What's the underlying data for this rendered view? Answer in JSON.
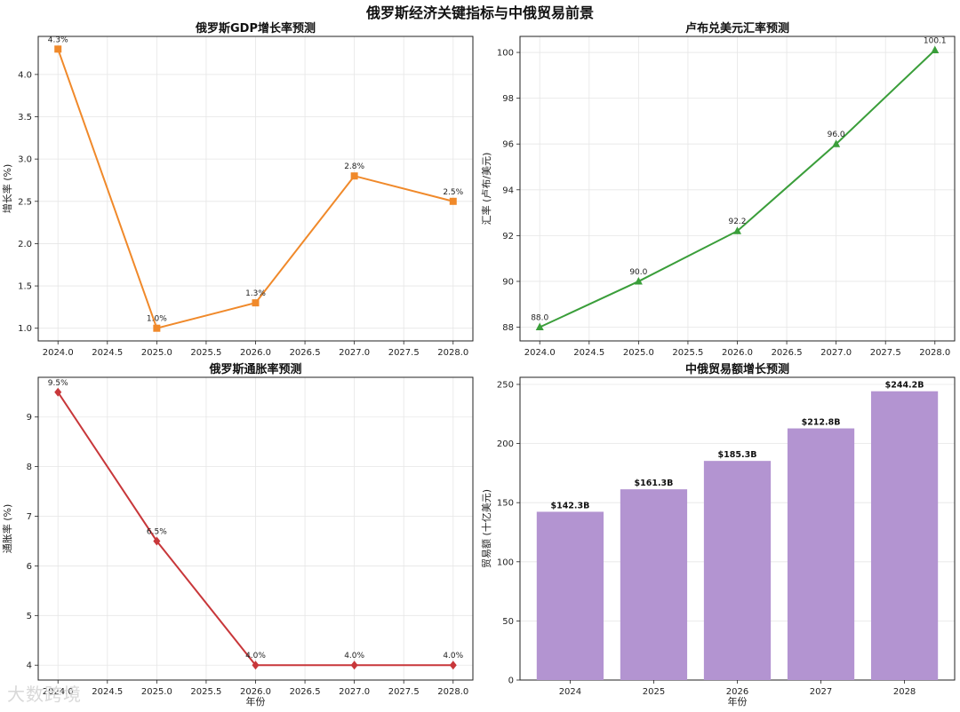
{
  "suptitle": "俄罗斯经济关键指标与中俄贸易前景",
  "watermark": "大数跨境",
  "chart_data": [
    {
      "type": "line",
      "title": "俄罗斯GDP增长率预测",
      "xlabel": "",
      "ylabel": "增长率 (%)",
      "x": [
        2024,
        2025,
        2026,
        2027,
        2028
      ],
      "values": [
        4.3,
        1.0,
        1.3,
        2.8,
        2.5
      ],
      "labels": [
        "4.3%",
        "1.0%",
        "1.3%",
        "2.8%",
        "2.5%"
      ],
      "xlim": [
        2023.8,
        2028.2
      ],
      "ylim": [
        0.85,
        4.45
      ],
      "xticks": [
        2024.0,
        2024.5,
        2025.0,
        2025.5,
        2026.0,
        2026.5,
        2027.0,
        2027.5,
        2028.0
      ],
      "xtick_labels": [
        "2024.0",
        "2024.5",
        "2025.0",
        "2025.5",
        "2026.0",
        "2026.5",
        "2027.0",
        "2027.5",
        "2028.0"
      ],
      "yticks": [
        1.0,
        1.5,
        2.0,
        2.5,
        3.0,
        3.5,
        4.0
      ],
      "ytick_labels": [
        "1.0",
        "1.5",
        "2.0",
        "2.5",
        "3.0",
        "3.5",
        "4.0"
      ],
      "marker": "square",
      "color": "#f0892a",
      "grid": true
    },
    {
      "type": "line",
      "title": "卢布兑美元汇率预测",
      "xlabel": "",
      "ylabel": "汇率 (卢布/美元)",
      "x": [
        2024,
        2025,
        2026,
        2027,
        2028
      ],
      "values": [
        88.0,
        90.0,
        92.2,
        96.0,
        100.1
      ],
      "labels": [
        "88.0",
        "90.0",
        "92.2",
        "96.0",
        "100.1"
      ],
      "xlim": [
        2023.8,
        2028.2
      ],
      "ylim": [
        87.4,
        100.7
      ],
      "xticks": [
        2024.0,
        2024.5,
        2025.0,
        2025.5,
        2026.0,
        2026.5,
        2027.0,
        2027.5,
        2028.0
      ],
      "xtick_labels": [
        "2024.0",
        "2024.5",
        "2025.0",
        "2025.5",
        "2026.0",
        "2026.5",
        "2027.0",
        "2027.5",
        "2028.0"
      ],
      "yticks": [
        88,
        90,
        92,
        94,
        96,
        98,
        100
      ],
      "ytick_labels": [
        "88",
        "90",
        "92",
        "94",
        "96",
        "98",
        "100"
      ],
      "marker": "triangle",
      "color": "#3a9e3a",
      "grid": true
    },
    {
      "type": "line",
      "title": "俄罗斯通胀率预测",
      "xlabel": "年份",
      "ylabel": "通胀率 (%)",
      "x": [
        2024,
        2025,
        2026,
        2027,
        2028
      ],
      "values": [
        9.5,
        6.5,
        4.0,
        4.0,
        4.0
      ],
      "labels": [
        "9.5%",
        "6.5%",
        "4.0%",
        "4.0%",
        "4.0%"
      ],
      "xlim": [
        2023.8,
        2028.2
      ],
      "ylim": [
        3.7,
        9.8
      ],
      "xticks": [
        2024.0,
        2024.5,
        2025.0,
        2025.5,
        2026.0,
        2026.5,
        2027.0,
        2027.5,
        2028.0
      ],
      "xtick_labels": [
        "2024.0",
        "2024.5",
        "2025.0",
        "2025.5",
        "2026.0",
        "2026.5",
        "2027.0",
        "2027.5",
        "2028.0"
      ],
      "yticks": [
        4,
        5,
        6,
        7,
        8,
        9
      ],
      "ytick_labels": [
        "4",
        "5",
        "6",
        "7",
        "8",
        "9"
      ],
      "marker": "diamond",
      "color": "#c8373a",
      "grid": true
    },
    {
      "type": "bar",
      "title": "中俄贸易额增长预测",
      "xlabel": "年份",
      "ylabel": "贸易额 (十亿美元)",
      "categories": [
        "2024",
        "2025",
        "2026",
        "2027",
        "2028"
      ],
      "values": [
        142.3,
        161.3,
        185.3,
        212.8,
        244.2
      ],
      "labels": [
        "$142.3B",
        "$161.3B",
        "$185.3B",
        "$212.8B",
        "$244.2B"
      ],
      "ylim": [
        0,
        256
      ],
      "yticks": [
        0,
        50,
        100,
        150,
        200,
        250
      ],
      "ytick_labels": [
        "0",
        "50",
        "100",
        "150",
        "200",
        "250"
      ],
      "color": "#b394d1",
      "grid": true
    }
  ]
}
